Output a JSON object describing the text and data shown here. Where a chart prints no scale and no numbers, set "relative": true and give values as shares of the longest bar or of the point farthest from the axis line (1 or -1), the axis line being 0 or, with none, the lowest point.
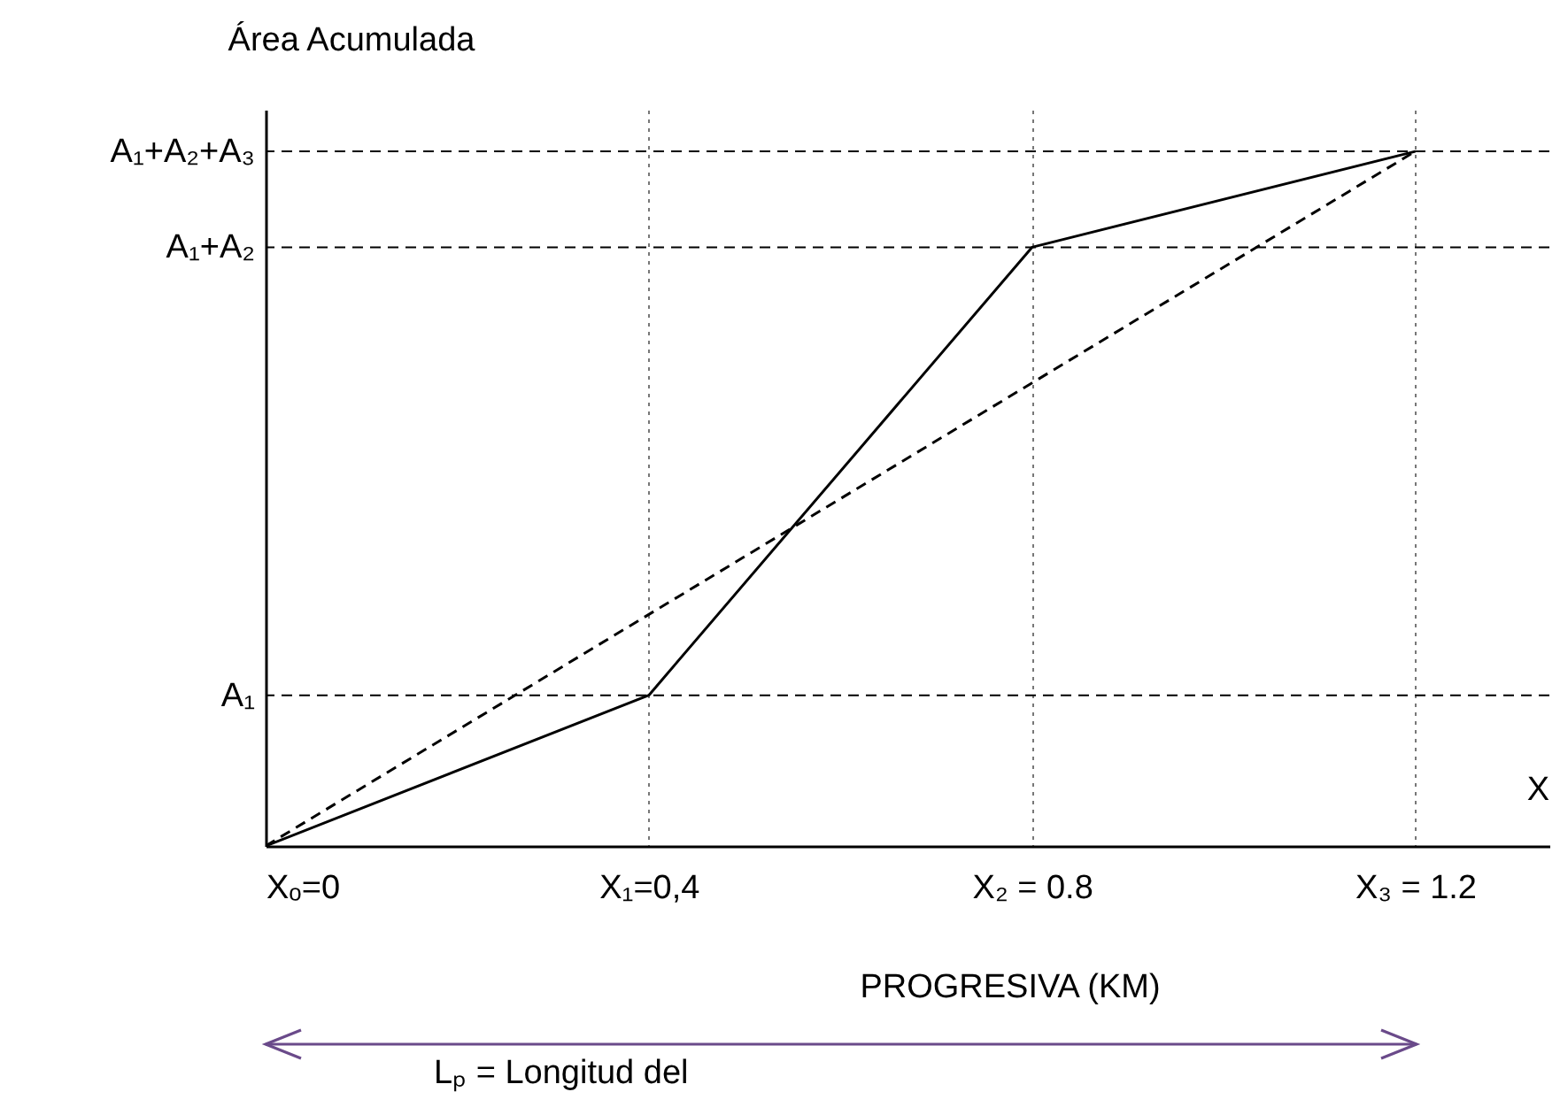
{
  "chart_data": {
    "type": "line",
    "xlabel": "PROGRESIVA (KM)",
    "ylabel": "Área Acumulada",
    "relative": true,
    "x": [
      0,
      0.4,
      0.8,
      1.2
    ],
    "xlim": [
      0,
      1.34
    ],
    "xticks": [
      {
        "value": 0,
        "label": "Xₒ=0"
      },
      {
        "value": 0.4,
        "label": "X₁=0,4"
      },
      {
        "value": 0.8,
        "label": "X₂ = 0.8"
      },
      {
        "value": 1.2,
        "label": "X₃ = 1.2"
      }
    ],
    "grid": "x",
    "marker": "none",
    "series": [
      {
        "color": "#000000",
        "values": [
          0,
          0.217,
          0.862,
          1
        ],
        "line_style": "solid"
      },
      {
        "color": "#000000",
        "x": [
          0,
          1.2
        ],
        "values": [
          0,
          1
        ],
        "line_style": "dashed"
      }
    ],
    "ref_lines": [
      {
        "axis": "y",
        "value": 0.217,
        "label": "A₁",
        "line_style": "dashed"
      },
      {
        "axis": "y",
        "value": 0.862,
        "label": "A₁+A₂",
        "line_style": "dashed"
      },
      {
        "axis": "y",
        "value": 1,
        "label": "A₁+A₂+A₃",
        "line_style": "dashed"
      }
    ],
    "annotations": [
      "X",
      "Lₚ = Longitud del"
    ]
  }
}
